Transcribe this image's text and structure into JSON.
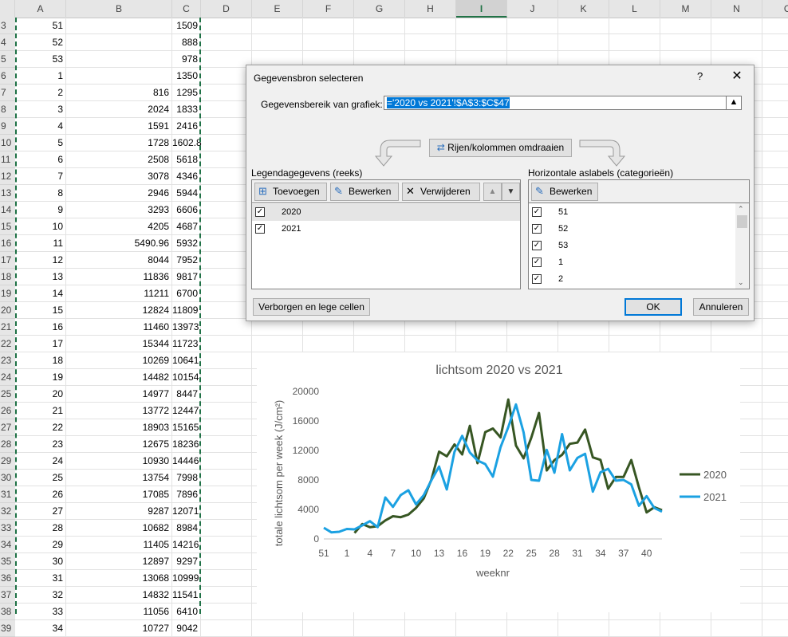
{
  "columns": [
    "A",
    "B",
    "C",
    "D",
    "E",
    "F",
    "G",
    "H",
    "I",
    "J",
    "K",
    "L",
    "M",
    "N",
    "O"
  ],
  "selected_column": "I",
  "rows": [
    {
      "n": "3",
      "a": "51",
      "b": "",
      "c": "1509"
    },
    {
      "n": "4",
      "a": "52",
      "b": "",
      "c": "888"
    },
    {
      "n": "5",
      "a": "53",
      "b": "",
      "c": "978"
    },
    {
      "n": "6",
      "a": "1",
      "b": "",
      "c": "1350"
    },
    {
      "n": "7",
      "a": "2",
      "b": "816",
      "c": "1295"
    },
    {
      "n": "8",
      "a": "3",
      "b": "2024",
      "c": "1833"
    },
    {
      "n": "9",
      "a": "4",
      "b": "1591",
      "c": "2416"
    },
    {
      "n": "10",
      "a": "5",
      "b": "1728",
      "c": "1602.8"
    },
    {
      "n": "11",
      "a": "6",
      "b": "2508",
      "c": "5618"
    },
    {
      "n": "12",
      "a": "7",
      "b": "3078",
      "c": "4346"
    },
    {
      "n": "13",
      "a": "8",
      "b": "2946",
      "c": "5944"
    },
    {
      "n": "14",
      "a": "9",
      "b": "3293",
      "c": "6606"
    },
    {
      "n": "15",
      "a": "10",
      "b": "4205",
      "c": "4687"
    },
    {
      "n": "16",
      "a": "11",
      "b": "5490.96",
      "c": "5932"
    },
    {
      "n": "17",
      "a": "12",
      "b": "8044",
      "c": "7952"
    },
    {
      "n": "18",
      "a": "13",
      "b": "11836",
      "c": "9817"
    },
    {
      "n": "19",
      "a": "14",
      "b": "11211",
      "c": "6700"
    },
    {
      "n": "20",
      "a": "15",
      "b": "12824",
      "c": "11809"
    },
    {
      "n": "21",
      "a": "16",
      "b": "11460",
      "c": "13973"
    },
    {
      "n": "22",
      "a": "17",
      "b": "15344",
      "c": "11723"
    },
    {
      "n": "23",
      "a": "18",
      "b": "10269",
      "c": "10641"
    },
    {
      "n": "24",
      "a": "19",
      "b": "14482",
      "c": "10154"
    },
    {
      "n": "25",
      "a": "20",
      "b": "14977",
      "c": "8447"
    },
    {
      "n": "26",
      "a": "21",
      "b": "13772",
      "c": "12447"
    },
    {
      "n": "27",
      "a": "22",
      "b": "18903",
      "c": "15165"
    },
    {
      "n": "28",
      "a": "23",
      "b": "12675",
      "c": "18236"
    },
    {
      "n": "29",
      "a": "24",
      "b": "10930",
      "c": "14446"
    },
    {
      "n": "30",
      "a": "25",
      "b": "13754",
      "c": "7998"
    },
    {
      "n": "31",
      "a": "26",
      "b": "17085",
      "c": "7896"
    },
    {
      "n": "32",
      "a": "27",
      "b": "9287",
      "c": "12071"
    },
    {
      "n": "33",
      "a": "28",
      "b": "10682",
      "c": "8984"
    },
    {
      "n": "34",
      "a": "29",
      "b": "11405",
      "c": "14216"
    },
    {
      "n": "35",
      "a": "30",
      "b": "12897",
      "c": "9297"
    },
    {
      "n": "36",
      "a": "31",
      "b": "13068",
      "c": "10999"
    },
    {
      "n": "37",
      "a": "32",
      "b": "14832",
      "c": "11541"
    },
    {
      "n": "38",
      "a": "33",
      "b": "11056",
      "c": "6410"
    },
    {
      "n": "39",
      "a": "34",
      "b": "10727",
      "c": "9042"
    }
  ],
  "dialog": {
    "title": "Gegevensbron selecteren",
    "help": "?",
    "close": "✕",
    "range_label": "Gegevensbereik van grafiek:",
    "range_value": "='2020 vs 2021'!$A$3:$C$47",
    "switch_label": "Rijen/kolommen omdraaien",
    "legend_label": "Legendagegevens (reeks)",
    "add_label": "Toevoegen",
    "edit_label": "Bewerken",
    "remove_label": "Verwijderen",
    "series": [
      {
        "label": "2020",
        "checked": true
      },
      {
        "label": "2021",
        "checked": true
      }
    ],
    "axis_label": "Horizontale aslabels (categorieën)",
    "axis_edit_label": "Bewerken",
    "categories": [
      {
        "label": "51"
      },
      {
        "label": "52"
      },
      {
        "label": "53"
      },
      {
        "label": "1"
      },
      {
        "label": "2"
      }
    ],
    "hidden_cells_label": "Verborgen en lege cellen",
    "ok_label": "OK",
    "cancel_label": "Annuleren"
  },
  "chart_data": {
    "type": "line",
    "title": "lichtsom 2020 vs 2021",
    "xlabel": "weeknr",
    "ylabel": "totale lichtsom per week (J/cm²)",
    "ylim": [
      0,
      20000
    ],
    "yticks": [
      "0",
      "4000",
      "8000",
      "12000",
      "16000",
      "20000"
    ],
    "xticks": [
      "51",
      "1",
      "4",
      "7",
      "10",
      "13",
      "16",
      "19",
      "22",
      "25",
      "28",
      "31",
      "34",
      "37",
      "40"
    ],
    "x_tick_index": [
      0,
      3,
      6,
      9,
      12,
      15,
      18,
      21,
      24,
      27,
      30,
      33,
      36,
      39,
      42
    ],
    "categories": [
      "51",
      "52",
      "53",
      "1",
      "2",
      "3",
      "4",
      "5",
      "6",
      "7",
      "8",
      "9",
      "10",
      "11",
      "12",
      "13",
      "14",
      "15",
      "16",
      "17",
      "18",
      "19",
      "20",
      "21",
      "22",
      "23",
      "24",
      "25",
      "26",
      "27",
      "28",
      "29",
      "30",
      "31",
      "32",
      "33",
      "34",
      "35",
      "36",
      "37",
      "38",
      "39",
      "40",
      "41",
      "42"
    ],
    "legend_position": "right",
    "series": [
      {
        "name": "2020",
        "color": "#375623",
        "values": [
          null,
          null,
          null,
          null,
          816,
          2024,
          1591,
          1728,
          2508,
          3078,
          2946,
          3293,
          4205,
          5490.96,
          8044,
          11836,
          11211,
          12824,
          11460,
          15344,
          10269,
          14482,
          14977,
          13772,
          18903,
          12675,
          10930,
          13754,
          17085,
          9287,
          10682,
          11405,
          12897,
          13068,
          14832,
          11056,
          10727,
          6800,
          8400,
          8400,
          10700,
          7000,
          3600,
          4300,
          3900
        ]
      },
      {
        "name": "2021",
        "color": "#1ba1e2",
        "values": [
          1509,
          888,
          978,
          1350,
          1295,
          1833,
          2416,
          1602.8,
          5618,
          4346,
          5944,
          6606,
          4687,
          5932,
          7952,
          9817,
          6700,
          11809,
          13973,
          11723,
          10641,
          10154,
          8447,
          12447,
          15165,
          18236,
          14446,
          7998,
          7896,
          12071,
          8984,
          14216,
          9297,
          10999,
          11541,
          6410,
          9042,
          9500,
          7900,
          8000,
          7400,
          4500,
          5800,
          4200,
          3700
        ]
      }
    ]
  }
}
